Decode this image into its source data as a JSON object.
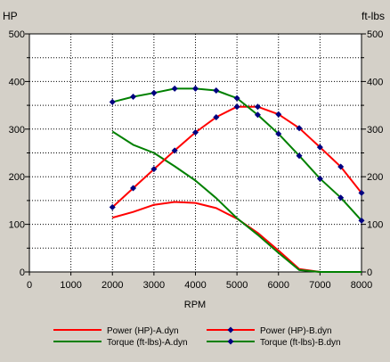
{
  "chart_data": {
    "type": "line",
    "title": "",
    "xlabel": "RPM",
    "ylabel_left": "HP",
    "ylabel_right": "ft-lbs",
    "xlim": [
      0,
      8000
    ],
    "ylim": [
      0,
      500
    ],
    "ylim_right": [
      0,
      500
    ],
    "x_ticks": [
      "0",
      "1000",
      "2000",
      "3000",
      "4000",
      "5000",
      "6000",
      "7000",
      "8000"
    ],
    "y_ticks": [
      "0",
      "100",
      "200",
      "300",
      "400",
      "500"
    ],
    "y_ticks_right": [
      "0",
      "100",
      "200",
      "300",
      "400",
      "500"
    ],
    "grid": true,
    "legend_position": "bottom",
    "colors": {
      "power": "#ff0000",
      "torque": "#008000",
      "marker": "#000080",
      "plot_background": "#ffffff",
      "panel_background": "#d4d0c8"
    },
    "series": [
      {
        "name": "Power (HP)-A.dyn",
        "color": "#ff0000",
        "markers": false,
        "x": [
          2000,
          2500,
          3000,
          3500,
          4000,
          4500,
          5000,
          5500,
          6000,
          6500,
          7000,
          7500,
          8000
        ],
        "y": [
          114,
          126,
          141,
          147,
          145,
          134,
          112,
          82,
          45,
          6,
          0,
          0,
          0
        ]
      },
      {
        "name": "Torque (ft-lbs)-A.dyn",
        "color": "#008000",
        "markers": false,
        "x": [
          2000,
          2500,
          3000,
          3500,
          4000,
          4500,
          5000,
          5500,
          6000,
          6500,
          7000,
          7500,
          8000
        ],
        "y": [
          295,
          267,
          250,
          222,
          192,
          155,
          113,
          78,
          40,
          4,
          0,
          0,
          0
        ]
      },
      {
        "name": "Power (HP)-B.dyn",
        "color": "#ff0000",
        "markers": true,
        "x": [
          2000,
          2500,
          3000,
          3500,
          4000,
          4500,
          5000,
          5500,
          6000,
          6500,
          7000,
          7500,
          8000
        ],
        "y": [
          136,
          176,
          216,
          255,
          293,
          325,
          347,
          347,
          331,
          302,
          262,
          221,
          166
        ]
      },
      {
        "name": "Torque (ft-lbs)-B.dyn",
        "color": "#008000",
        "markers": true,
        "x": [
          2000,
          2500,
          3000,
          3500,
          4000,
          4500,
          5000,
          5500,
          6000,
          6500,
          7000,
          7500,
          8000
        ],
        "y": [
          357,
          368,
          376,
          385,
          385,
          381,
          365,
          330,
          290,
          244,
          196,
          156,
          108
        ]
      }
    ]
  }
}
